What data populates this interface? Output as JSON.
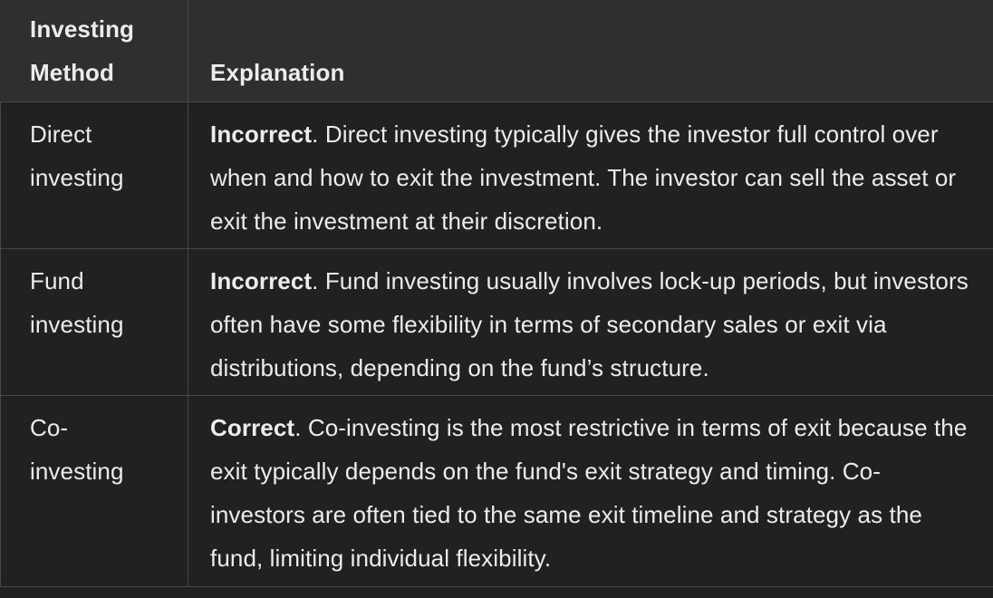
{
  "table": {
    "headers": {
      "method_line1": "Investing",
      "method_line2": "Method",
      "explanation": "Explanation"
    },
    "rows": [
      {
        "method_line1": "Direct",
        "method_line2": "investing",
        "verdict": "Incorrect",
        "explanation": ". Direct investing typically gives the investor full control over when and how to exit the investment. The investor can sell the asset or exit the investment at their discretion."
      },
      {
        "method_line1": "Fund",
        "method_line2": "investing",
        "verdict": "Incorrect",
        "explanation": ". Fund investing usually involves lock-up periods, but investors often have some flexibility in terms of secondary sales or exit via distributions, depending on the fund’s structure."
      },
      {
        "method_line1": "Co-",
        "method_line2": "investing",
        "verdict": "Correct",
        "explanation": ". Co-investing is the most restrictive in terms of exit because the exit typically depends on the fund's exit strategy and timing. Co-investors are often tied to the same exit timeline and strategy as the fund, limiting individual flexibility."
      }
    ]
  }
}
